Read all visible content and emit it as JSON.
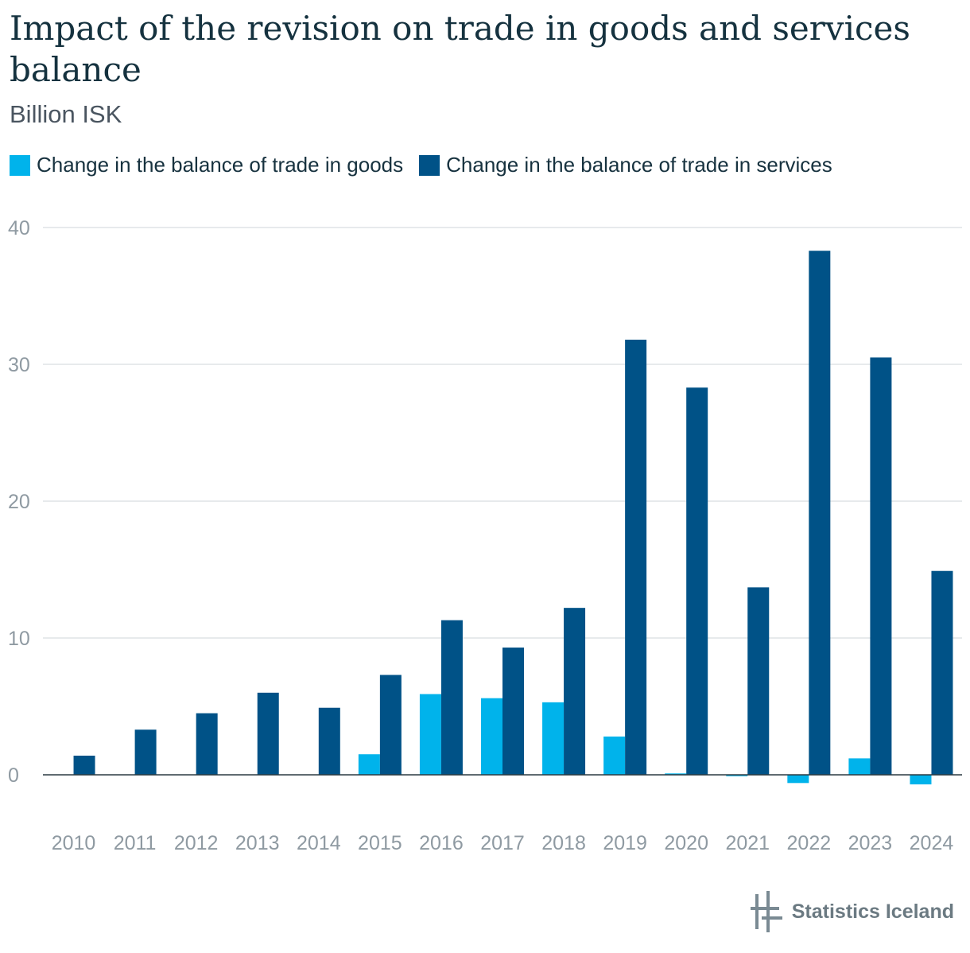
{
  "title": "Impact of the revision on trade in goods and services balance",
  "subtitle": "Billion ISK",
  "brand": "Statistics Iceland",
  "colors": {
    "goods": "#00b3eb",
    "services": "#005287",
    "grid": "#dfe3e6",
    "tick": "#8f9aa2"
  },
  "chart_data": {
    "type": "bar",
    "categories": [
      "2010",
      "2011",
      "2012",
      "2013",
      "2014",
      "2015",
      "2016",
      "2017",
      "2018",
      "2019",
      "2020",
      "2021",
      "2022",
      "2023",
      "2024"
    ],
    "series": [
      {
        "name": "Change in the balance of trade in goods",
        "values": [
          0,
          0,
          0,
          0,
          0,
          1.5,
          5.9,
          5.6,
          5.3,
          2.8,
          0.1,
          -0.1,
          -0.6,
          1.2,
          -0.7
        ]
      },
      {
        "name": "Change in the balance of trade in services",
        "values": [
          1.4,
          3.3,
          4.5,
          6.0,
          4.9,
          7.3,
          11.3,
          9.3,
          12.2,
          31.8,
          28.3,
          13.7,
          38.3,
          30.5,
          14.9
        ]
      }
    ],
    "yticks": [
      0,
      10,
      20,
      30,
      40
    ],
    "ylim": [
      -2,
      40
    ],
    "grid": true,
    "legend": "top-left"
  }
}
